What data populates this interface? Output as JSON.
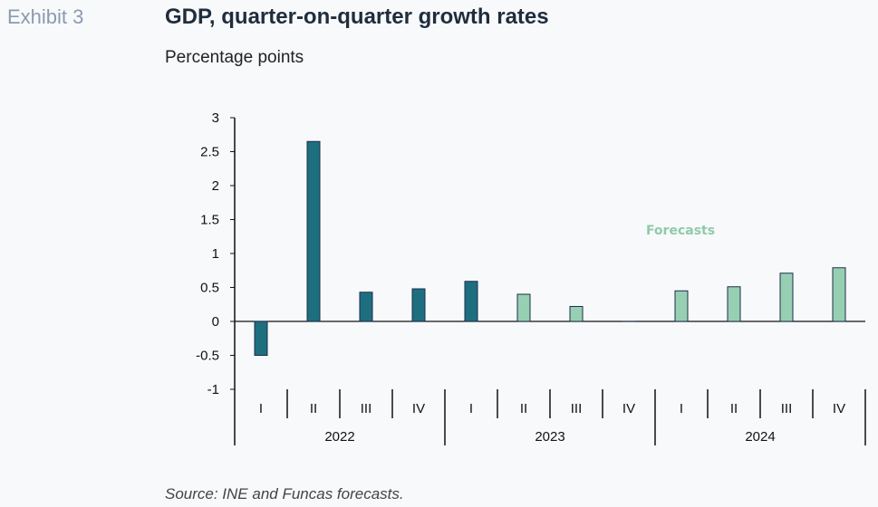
{
  "header": {
    "exhibit": "Exhibit 3",
    "title": "GDP, quarter-on-quarter growth rates",
    "subtitle": "Percentage points"
  },
  "footer": {
    "source": "Source: INE and Funcas forecasts."
  },
  "colors": {
    "actual": "#1d6f80",
    "forecast": "#97cfb3",
    "bar_stroke": "#1b2f4a",
    "annotation": "#8fcba9",
    "axis": "#111111"
  },
  "chart_data": {
    "type": "bar",
    "title": "GDP, quarter-on-quarter growth rates",
    "ylabel": "Percentage points",
    "ylim": [
      -1,
      3
    ],
    "yticks": [
      3,
      2.5,
      2,
      1.5,
      1,
      0.5,
      0,
      -0.5,
      -1
    ],
    "ytick_labels": [
      "3",
      "2.5",
      "2",
      "1.5",
      "1",
      "0.5",
      "0",
      "-0.5",
      "-1"
    ],
    "grid": false,
    "categories": [
      "I",
      "II",
      "III",
      "IV",
      "I",
      "II",
      "III",
      "IV",
      "I",
      "II",
      "III",
      "IV"
    ],
    "years": [
      "2022",
      "2023",
      "2024"
    ],
    "values": [
      -0.5,
      2.65,
      0.43,
      0.48,
      0.59,
      0.4,
      0.22,
      0,
      0.45,
      0.51,
      0.71,
      0.79
    ],
    "is_forecast": [
      false,
      false,
      false,
      false,
      false,
      true,
      true,
      true,
      true,
      true,
      true,
      true
    ],
    "annotation": "Forecasts"
  }
}
